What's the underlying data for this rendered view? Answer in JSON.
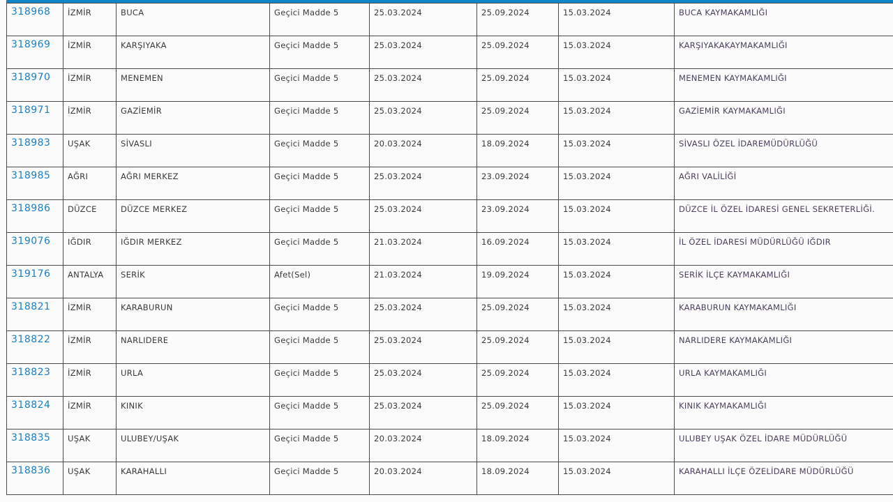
{
  "colors": {
    "accent": "#0e86c8",
    "link": "#1a7fc4"
  },
  "rows": [
    {
      "id": "318968",
      "il": "İZMİR",
      "ilce": "BUCA",
      "tur": "Geçici Madde 5",
      "d1": "25.03.2024",
      "d2": "25.09.2024",
      "d3": "15.03.2024",
      "kurum": "BUCA KAYMAKAMLIĞI"
    },
    {
      "id": "318969",
      "il": "İZMİR",
      "ilce": "KARŞIYAKA",
      "tur": "Geçici Madde 5",
      "d1": "25.03.2024",
      "d2": "25.09.2024",
      "d3": "15.03.2024",
      "kurum": "KARŞIYAKAKAYMAKAMLIĞI"
    },
    {
      "id": "318970",
      "il": "İZMİR",
      "ilce": "MENEMEN",
      "tur": "Geçici Madde 5",
      "d1": "25.03.2024",
      "d2": "25.09.2024",
      "d3": "15.03.2024",
      "kurum": "MENEMEN KAYMAKAMLIĞI"
    },
    {
      "id": "318971",
      "il": "İZMİR",
      "ilce": "GAZİEMİR",
      "tur": "Geçici Madde 5",
      "d1": "25.03.2024",
      "d2": "25.09.2024",
      "d3": "15.03.2024",
      "kurum": "GAZİEMİR KAYMAKAMLIĞI"
    },
    {
      "id": "318983",
      "il": "UŞAK",
      "ilce": "SİVASLI",
      "tur": "Geçici Madde 5",
      "d1": "20.03.2024",
      "d2": "18.09.2024",
      "d3": "15.03.2024",
      "kurum": "SİVASLI ÖZEL İDAREMÜDÜRLÜĞÜ"
    },
    {
      "id": "318985",
      "il": "AĞRI",
      "ilce": "AĞRI MERKEZ",
      "tur": "Geçici Madde 5",
      "d1": "25.03.2024",
      "d2": "23.09.2024",
      "d3": "15.03.2024",
      "kurum": "AĞRI VALİLİĞİ"
    },
    {
      "id": "318986",
      "il": "DÜZCE",
      "ilce": "DÜZCE MERKEZ",
      "tur": "Geçici Madde 5",
      "d1": "25.03.2024",
      "d2": "23.09.2024",
      "d3": "15.03.2024",
      "kurum": "DÜZCE İL ÖZEL İDARESİ GENEL SEKRETERLİĞİ."
    },
    {
      "id": "319076",
      "il": "IĞDIR",
      "ilce": "IĞDIR MERKEZ",
      "tur": "Geçici Madde 5",
      "d1": "21.03.2024",
      "d2": "16.09.2024",
      "d3": "15.03.2024",
      "kurum": "İL ÖZEL İDARESİ MÜDÜRLÜĞÜ IĞDIR"
    },
    {
      "id": "319176",
      "il": "ANTALYA",
      "ilce": "SERİK",
      "tur": "Afet(Sel)",
      "d1": "21.03.2024",
      "d2": "19.09.2024",
      "d3": "15.03.2024",
      "kurum": "SERİK İLÇE KAYMAKAMLIĞI"
    },
    {
      "id": "318821",
      "il": "İZMİR",
      "ilce": "KARABURUN",
      "tur": "Geçici Madde 5",
      "d1": "25.03.2024",
      "d2": "25.09.2024",
      "d3": "15.03.2024",
      "kurum": "KARABURUN KAYMAKAMLIĞI"
    },
    {
      "id": "318822",
      "il": "İZMİR",
      "ilce": "NARLIDERE",
      "tur": "Geçici Madde 5",
      "d1": "25.03.2024",
      "d2": "25.09.2024",
      "d3": "15.03.2024",
      "kurum": "NARLIDERE KAYMAKAMLIĞI"
    },
    {
      "id": "318823",
      "il": "İZMİR",
      "ilce": "URLA",
      "tur": "Geçici Madde 5",
      "d1": "25.03.2024",
      "d2": "25.09.2024",
      "d3": "15.03.2024",
      "kurum": "URLA KAYMAKAMLIĞI"
    },
    {
      "id": "318824",
      "il": "İZMİR",
      "ilce": "KINIK",
      "tur": "Geçici Madde 5",
      "d1": "25.03.2024",
      "d2": "25.09.2024",
      "d3": "15.03.2024",
      "kurum": "KINIK KAYMAKAMLIĞI"
    },
    {
      "id": "318835",
      "il": "UŞAK",
      "ilce": "ULUBEY/UŞAK",
      "tur": "Geçici Madde 5",
      "d1": "20.03.2024",
      "d2": "18.09.2024",
      "d3": "15.03.2024",
      "kurum": "ULUBEY UŞAK ÖZEL İDARE MÜDÜRLÜĞÜ"
    },
    {
      "id": "318836",
      "il": "UŞAK",
      "ilce": "KARAHALLI",
      "tur": "Geçici Madde 5",
      "d1": "20.03.2024",
      "d2": "18.09.2024",
      "d3": "15.03.2024",
      "kurum": "KARAHALLI İLÇE ÖZELİDARE MÜDÜRLÜĞÜ"
    }
  ]
}
